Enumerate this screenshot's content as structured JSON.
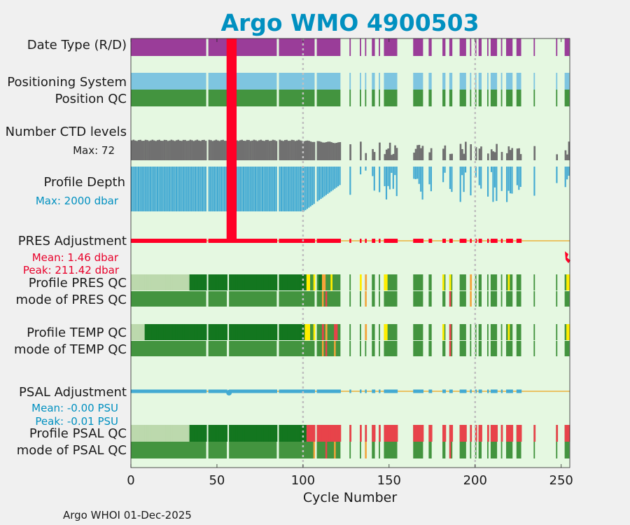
{
  "title": "Argo WMO 4900503",
  "footer": "Argo WHOI 01-Dec-2025",
  "colors": {
    "background": "#e5f8e1",
    "title": "#0090c0",
    "date_type": "#9a3d99",
    "positioning_system": "#7ec5e0",
    "good_green": "#43943f",
    "dark_green": "#13761f",
    "light_green": "#bcd9ad",
    "ctd_gray": "#707070",
    "depth_blue": "#43aad2",
    "pres_red": "#ff0026",
    "baseline_orange": "#ebb13c",
    "psal_blue": "#43aad2",
    "yellow": "#ffee00",
    "orange": "#f7a43a",
    "red_qc": "#e8434a"
  },
  "row_labels": {
    "date_type": "Date Type (R/D)",
    "positioning_system": "Positioning System",
    "position_qc": "Position QC",
    "ctd_levels": "Number CTD levels",
    "ctd_max": "Max: 72",
    "profile_depth": "Profile Depth",
    "depth_max": "Max: 2000 dbar",
    "pres_adjustment": "PRES Adjustment",
    "pres_mean": "Mean: 1.46 dbar",
    "pres_peak": "Peak: 211.42 dbar",
    "profile_pres_qc": "Profile PRES QC",
    "mode_pres_qc": "mode of PRES QC",
    "profile_temp_qc": "Profile TEMP QC",
    "mode_temp_qc": "mode of TEMP QC",
    "psal_adjustment": "PSAL Adjustment",
    "psal_mean": "Mean: -0.00 PSU",
    "psal_peak": "Peak: -0.01 PSU",
    "profile_psal_qc": "Profile PSAL QC",
    "mode_psal_qc": "mode of PSAL QC"
  },
  "chart_data": {
    "type": "timeline",
    "title": "Argo WMO 4900503",
    "xlabel": "Cycle Number",
    "xlim": [
      0,
      255
    ],
    "xticks": [
      0,
      50,
      100,
      150,
      200,
      250
    ],
    "vertical_gridlines": [
      100,
      200
    ],
    "ctd_levels_max": 72,
    "profile_depth_max_dbar": 2000,
    "pres_adjustment_mean_dbar": 1.46,
    "pres_adjustment_peak_dbar": 211.42,
    "pres_adjustment_peak_cycles": [
      56,
      61
    ],
    "psal_adjustment_mean_psu": -0.0,
    "psal_adjustment_peak_psu": -0.01,
    "missing_cycles": [
      44,
      56,
      85,
      107,
      122,
      123,
      124,
      125,
      126,
      128,
      129,
      130,
      131,
      132,
      134,
      135,
      137,
      138,
      139,
      142,
      143,
      145,
      146,
      155,
      156,
      157,
      158,
      159,
      160,
      161,
      162,
      163,
      170,
      171,
      172,
      175,
      176,
      177,
      178,
      179,
      180,
      183,
      184,
      187,
      188,
      189,
      190,
      195,
      196,
      198,
      199,
      201,
      204,
      205,
      206,
      208,
      213,
      214,
      216,
      217,
      222,
      223,
      227,
      228,
      229,
      230,
      231,
      232,
      233,
      235,
      236,
      237,
      238,
      239,
      240,
      241,
      242,
      243,
      244,
      245,
      246,
      248,
      249,
      250,
      251
    ],
    "qc_segments": {
      "pres": [
        {
          "from": 0,
          "to": 34,
          "flag": "light"
        },
        {
          "from": 34,
          "to": 102,
          "flag": "dark"
        },
        {
          "from": 102,
          "to": 104,
          "flag": "yellow"
        },
        {
          "from": 106,
          "to": 107,
          "flag": "yellow"
        },
        {
          "from": 109,
          "to": 111,
          "flag": "dark"
        },
        {
          "from": 111,
          "to": 113,
          "flag": "orange"
        },
        {
          "from": 116,
          "to": 117,
          "flag": "yellow"
        },
        {
          "from": 133,
          "to": 134,
          "flag": "yellow"
        },
        {
          "from": 136,
          "to": 137,
          "flag": "orange"
        },
        {
          "from": 147,
          "to": 149,
          "flag": "yellow"
        },
        {
          "from": 181,
          "to": 182,
          "flag": "yellow"
        },
        {
          "from": 185,
          "to": 186,
          "flag": "yellow"
        },
        {
          "from": 197,
          "to": 198,
          "flag": "orange"
        },
        {
          "from": 219,
          "to": 220,
          "flag": "yellow"
        },
        {
          "from": 253,
          "to": 255,
          "flag": "yellow"
        }
      ],
      "temp": [
        {
          "from": 0,
          "to": 8,
          "flag": "light"
        },
        {
          "from": 8,
          "to": 101,
          "flag": "dark"
        },
        {
          "from": 101,
          "to": 104,
          "flag": "yellow"
        },
        {
          "from": 106,
          "to": 107,
          "flag": "yellow"
        },
        {
          "from": 111,
          "to": 112,
          "flag": "red"
        },
        {
          "from": 113,
          "to": 114,
          "flag": "orange"
        },
        {
          "from": 118,
          "to": 120,
          "flag": "red"
        },
        {
          "from": 136,
          "to": 137,
          "flag": "orange"
        },
        {
          "from": 147,
          "to": 149,
          "flag": "yellow"
        },
        {
          "from": 181,
          "to": 182,
          "flag": "yellow"
        },
        {
          "from": 185,
          "to": 186,
          "flag": "red"
        },
        {
          "from": 219,
          "to": 220,
          "flag": "yellow"
        },
        {
          "from": 253,
          "to": 255,
          "flag": "yellow"
        }
      ],
      "psal": [
        {
          "from": 0,
          "to": 34,
          "flag": "light"
        },
        {
          "from": 34,
          "to": 102,
          "flag": "dark"
        },
        {
          "from": 102,
          "to": 255,
          "flag": "red"
        }
      ]
    }
  }
}
